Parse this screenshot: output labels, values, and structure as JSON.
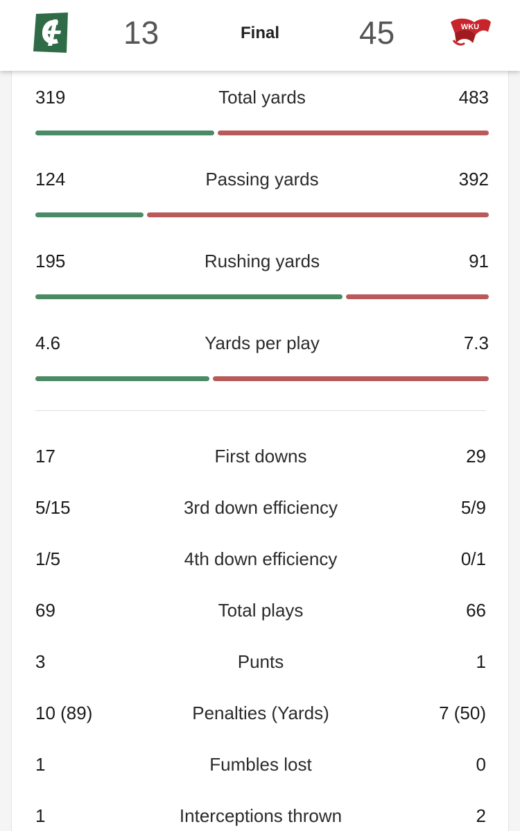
{
  "scoreboard": {
    "home": {
      "logo_letter": "C",
      "score": "13",
      "color": "#2e6b46"
    },
    "status": "Final",
    "away": {
      "logo_text": "WKU",
      "score": "45",
      "color": "#c8242b"
    }
  },
  "colors": {
    "home_bar": "#4a8a64",
    "away_bar": "#b85a5a"
  },
  "bar_stats": [
    {
      "label": "Total yards",
      "home": "319",
      "away": "483",
      "home_num": 319,
      "away_num": 483
    },
    {
      "label": "Passing yards",
      "home": "124",
      "away": "392",
      "home_num": 124,
      "away_num": 392
    },
    {
      "label": "Rushing yards",
      "home": "195",
      "away": "91",
      "home_num": 195,
      "away_num": 91
    },
    {
      "label": "Yards per play",
      "home": "4.6",
      "away": "7.3",
      "home_num": 4.6,
      "away_num": 7.3
    }
  ],
  "stats": [
    {
      "label": "First downs",
      "home": "17",
      "away": "29"
    },
    {
      "label": "3rd down efficiency",
      "home": "5/15",
      "away": "5/9"
    },
    {
      "label": "4th down efficiency",
      "home": "1/5",
      "away": "0/1"
    },
    {
      "label": "Total plays",
      "home": "69",
      "away": "66"
    },
    {
      "label": "Punts",
      "home": "3",
      "away": "1"
    },
    {
      "label": "Penalties (Yards)",
      "home": "10 (89)",
      "away": "7 (50)"
    },
    {
      "label": "Fumbles lost",
      "home": "1",
      "away": "0"
    },
    {
      "label": "Interceptions thrown",
      "home": "1",
      "away": "2"
    }
  ]
}
